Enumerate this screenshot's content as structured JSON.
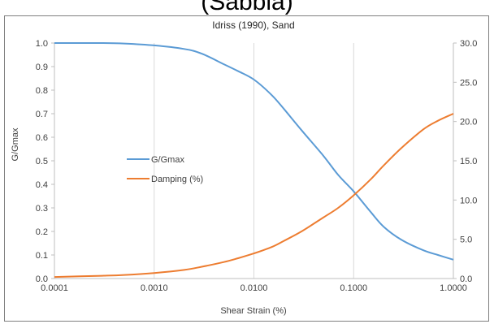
{
  "page_heading": "(Sabbia)",
  "colors": {
    "ggmax": "#5b9bd5",
    "damping": "#ed7d31",
    "grid": "#d9d9d9",
    "axis": "#bfbfbf"
  },
  "chart_data": {
    "type": "line",
    "title": "Idriss (1990), Sand",
    "xlabel": "Shear Strain (%)",
    "ylabel": "G/Gmax",
    "y2label": "",
    "xscale": "log",
    "xlim": [
      0.0001,
      1.0
    ],
    "ylim": [
      0.0,
      1.0
    ],
    "y2lim": [
      0.0,
      30.0
    ],
    "x_ticks": [
      "0.0001",
      "0.0010",
      "0.0100",
      "0.1000",
      "1.0000"
    ],
    "y_ticks": [
      "0.0",
      "0.1",
      "0.2",
      "0.3",
      "0.4",
      "0.5",
      "0.6",
      "0.7",
      "0.8",
      "0.9",
      "1.0"
    ],
    "y2_ticks": [
      "0.0",
      "5.0",
      "10.0",
      "15.0",
      "20.0",
      "25.0",
      "30.0"
    ],
    "grid": "vertical",
    "legend_position": "center-left",
    "series": [
      {
        "name": "G/Gmax",
        "axis": "left",
        "x": [
          0.0001,
          0.0003,
          0.0005,
          0.001,
          0.002,
          0.003,
          0.005,
          0.007,
          0.01,
          0.015,
          0.02,
          0.03,
          0.05,
          0.07,
          0.1,
          0.15,
          0.2,
          0.3,
          0.5,
          0.7,
          1.0
        ],
        "y": [
          1.0,
          1.0,
          0.998,
          0.99,
          0.975,
          0.955,
          0.91,
          0.88,
          0.845,
          0.78,
          0.72,
          0.63,
          0.52,
          0.44,
          0.37,
          0.28,
          0.22,
          0.165,
          0.12,
          0.1,
          0.08
        ]
      },
      {
        "name": "Damping (%)",
        "axis": "right",
        "x": [
          0.0001,
          0.0003,
          0.0005,
          0.001,
          0.002,
          0.003,
          0.005,
          0.007,
          0.01,
          0.015,
          0.02,
          0.03,
          0.05,
          0.07,
          0.1,
          0.15,
          0.2,
          0.3,
          0.5,
          0.7,
          1.0
        ],
        "y": [
          0.2,
          0.35,
          0.45,
          0.7,
          1.1,
          1.5,
          2.1,
          2.6,
          3.2,
          4.0,
          4.8,
          6.0,
          7.8,
          9.0,
          10.6,
          12.7,
          14.4,
          16.6,
          19.0,
          20.1,
          21.0
        ]
      }
    ]
  }
}
